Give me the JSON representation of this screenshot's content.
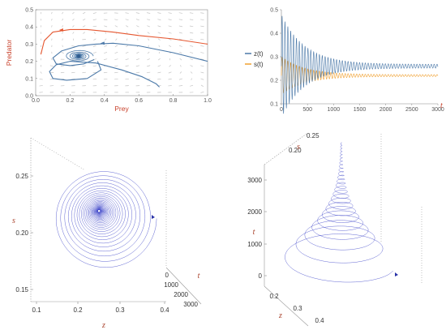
{
  "chart_data": [
    {
      "type": "line",
      "id": "phase_portrait",
      "title": "",
      "xlabel": "Prey",
      "ylabel": "Predator",
      "xlim": [
        0,
        1
      ],
      "ylim": [
        0,
        0.5
      ],
      "xticks": [
        "0.0",
        "0.2",
        "0.4",
        "0.6",
        "0.8",
        "1.0"
      ],
      "yticks": [
        "0.0",
        "0.1",
        "0.2",
        "0.3",
        "0.4",
        "0.5"
      ],
      "grid": false,
      "vector_field": true,
      "equilibrium": {
        "x": 0.25,
        "y": 0.23
      },
      "series": [
        {
          "color": "#e5562f",
          "x": [
            0.03,
            0.05,
            0.1,
            0.2,
            0.3,
            0.45,
            0.6,
            0.8,
            1.0
          ],
          "y": [
            0.24,
            0.32,
            0.37,
            0.385,
            0.385,
            0.37,
            0.35,
            0.33,
            0.3
          ]
        },
        {
          "color": "#4a78a8",
          "x": [
            1.0,
            0.8,
            0.6,
            0.45,
            0.35,
            0.25,
            0.15,
            0.1,
            0.12,
            0.2,
            0.28,
            0.34
          ],
          "y": [
            0.2,
            0.25,
            0.29,
            0.305,
            0.3,
            0.29,
            0.26,
            0.22,
            0.185,
            0.175,
            0.185,
            0.21
          ]
        },
        {
          "color": "#4a78a8",
          "x": [
            0.72,
            0.7,
            0.62,
            0.5,
            0.35,
            0.2,
            0.12,
            0.08,
            0.1,
            0.18,
            0.3,
            0.38,
            0.36
          ],
          "y": [
            0.05,
            0.07,
            0.11,
            0.15,
            0.19,
            0.2,
            0.18,
            0.14,
            0.1,
            0.09,
            0.1,
            0.15,
            0.2
          ]
        }
      ]
    },
    {
      "type": "line",
      "id": "time_series",
      "title": "",
      "xlabel": "t",
      "ylabel": "",
      "xlim": [
        0,
        3000
      ],
      "ylim": [
        0.1,
        0.5
      ],
      "xticks": [
        "0",
        "500",
        "1000",
        "1500",
        "2000",
        "2500",
        "3000"
      ],
      "yticks": [
        "0.1",
        "0.2",
        "0.3",
        "0.4",
        "0.5"
      ],
      "legend_position": "left",
      "series": [
        {
          "name": "z(t)",
          "color": "#4a78a8",
          "center": 0.26,
          "amp_start": 0.22,
          "amp_end": 0.008,
          "period": 55
        },
        {
          "name": "s(t)",
          "color": "#f0a030",
          "center": 0.22,
          "amp_start": 0.08,
          "amp_end": 0.004,
          "period": 55
        }
      ]
    },
    {
      "type": "line",
      "id": "spiral_3d_front",
      "title": "",
      "xlabel": "z",
      "ylabel": "s",
      "zlabel": "t",
      "xticks": [
        "0.1",
        "0.2",
        "0.3",
        "0.4"
      ],
      "yticks": [
        "0.15",
        "0.20",
        "0.25"
      ],
      "tticks": [
        "0",
        "1000",
        "2000",
        "3000"
      ],
      "color": "#3b43c8",
      "center": {
        "z": 0.26,
        "s": 0.222
      }
    },
    {
      "type": "line",
      "id": "spiral_3d_side",
      "title": "",
      "xlabel": "z",
      "ylabel": "s",
      "zlabel": "t",
      "xticks": [
        "0.2",
        "0.3",
        "0.4"
      ],
      "yticks": [
        "0.20",
        "0.25"
      ],
      "tticks": [
        "0",
        "1000",
        "2000",
        "3000"
      ],
      "color": "#3b43c8"
    }
  ]
}
